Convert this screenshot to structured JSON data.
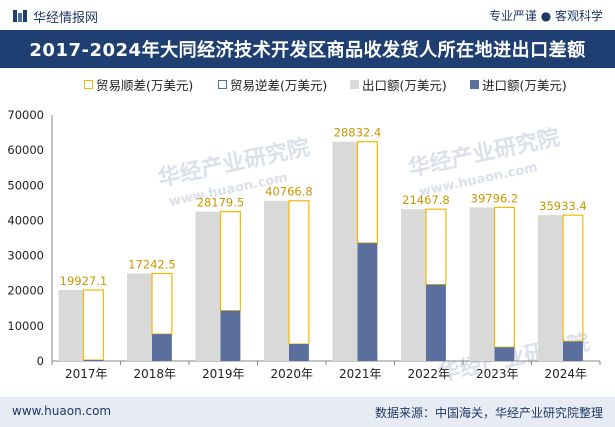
{
  "header": {
    "brand": "华经情报网",
    "slogan": "专业严谨 ● 客观科学"
  },
  "title": "2017-2024年大同经济技术开发区商品收发货人所在地进出口差额",
  "legend": [
    {
      "label": "贸易顺差(万美元)",
      "style": "outline",
      "color": "#f5b800"
    },
    {
      "label": "贸易逆差(万美元)",
      "style": "outline",
      "color": "#4a6fa5"
    },
    {
      "label": "出口额(万美元)",
      "style": "fill",
      "color": "#d9d9d9"
    },
    {
      "label": "进口额(万美元)",
      "style": "fill",
      "color": "#5b6f9e"
    }
  ],
  "chart_data": {
    "type": "bar",
    "categories": [
      "2017年",
      "2018年",
      "2019年",
      "2020年",
      "2021年",
      "2022年",
      "2023年",
      "2024年"
    ],
    "series": [
      {
        "name": "贸易顺差(万美元)",
        "values": [
          19927.1,
          17242.5,
          28179.5,
          40766.8,
          28832.4,
          21467.8,
          39796.2,
          35933.4
        ],
        "color": "#f5b800"
      },
      {
        "name": "贸易逆差(万美元)",
        "values": [
          0,
          0,
          0,
          0,
          0,
          0,
          0,
          0
        ],
        "color": "#4a6fa5"
      },
      {
        "name": "出口额(万美元)",
        "values": [
          20200,
          24900,
          42500,
          45600,
          62400,
          43200,
          43700,
          41500
        ],
        "color": "#d9d9d9"
      },
      {
        "name": "进口额(万美元)",
        "values": [
          273,
          7657,
          14320,
          4833,
          33568,
          21732,
          3904,
          5567
        ],
        "color": "#5b6f9e"
      }
    ],
    "data_labels": [
      "19927.1",
      "17242.5",
      "28179.5",
      "40766.8",
      "28832.4",
      "21467.8",
      "39796.2",
      "35933.4"
    ],
    "y_ticks": [
      "0",
      "10000",
      "20000",
      "30000",
      "40000",
      "50000",
      "60000",
      "70000"
    ],
    "ylim": [
      0,
      70000
    ],
    "xlabel": "",
    "ylabel": "",
    "grid": false,
    "legend_position": "top"
  },
  "watermarks": [
    "华经产业研究院",
    "www.huaon.com"
  ],
  "footer": {
    "url": "www.huaon.com",
    "source": "数据来源：中国海关，华经产业研究院整理"
  }
}
